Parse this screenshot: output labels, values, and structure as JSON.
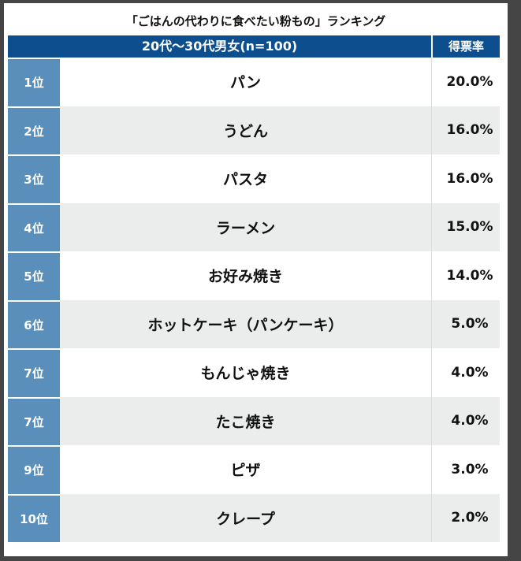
{
  "title": "「ごはんの代わりに食べたい粉もの」ランキング",
  "header": {
    "group": "20代〜30代男女(n=100)",
    "pct": "得票率"
  },
  "rows": [
    {
      "rank": "1位",
      "name": "パン",
      "value": "20.0%"
    },
    {
      "rank": "2位",
      "name": "うどん",
      "value": "16.0%"
    },
    {
      "rank": "3位",
      "name": "パスタ",
      "value": "16.0%"
    },
    {
      "rank": "4位",
      "name": "ラーメン",
      "value": "15.0%"
    },
    {
      "rank": "5位",
      "name": "お好み焼き",
      "value": "14.0%"
    },
    {
      "rank": "6位",
      "name": "ホットケーキ（パンケーキ）",
      "value": "5.0%"
    },
    {
      "rank": "7位",
      "name": "もんじゃ焼き",
      "value": "4.0%"
    },
    {
      "rank": "7位",
      "name": "たこ焼き",
      "value": "4.0%"
    },
    {
      "rank": "9位",
      "name": "ピザ",
      "value": "3.0%"
    },
    {
      "rank": "10位",
      "name": "クレープ",
      "value": "2.0%"
    }
  ]
}
